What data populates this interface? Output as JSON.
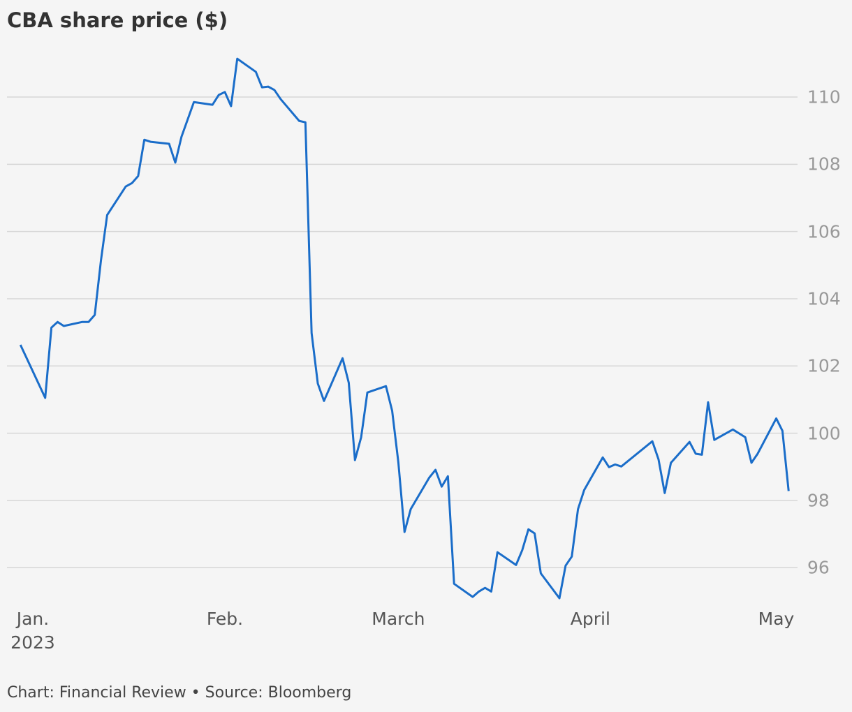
{
  "chart_data": {
    "type": "line",
    "title": "CBA share price ($)",
    "source": "Chart: Financial Review • Source: Bloomberg",
    "x": [
      -2,
      2,
      3,
      4,
      5,
      8,
      9,
      10,
      11,
      12,
      15,
      16,
      17,
      18,
      19,
      22,
      23,
      24,
      26,
      29,
      30,
      31,
      32,
      33,
      36,
      37,
      38,
      39,
      40,
      43,
      44,
      45,
      46,
      47,
      50,
      51,
      52,
      53,
      54,
      57,
      58,
      59,
      60,
      61,
      64,
      65,
      66,
      67,
      68,
      71,
      72,
      73,
      74,
      75,
      78,
      79,
      80,
      81,
      82,
      85,
      86,
      87,
      88,
      89,
      92,
      93,
      94,
      95,
      100,
      101,
      102,
      103,
      106,
      107,
      108,
      109,
      110,
      113,
      115,
      116,
      117,
      120,
      121,
      122
    ],
    "series": [
      {
        "name": "CBA",
        "color": "#1a6dc9",
        "values": [
          102.63,
          101.05,
          103.14,
          103.31,
          103.19,
          103.31,
          103.31,
          103.52,
          105.14,
          106.49,
          107.34,
          107.44,
          107.65,
          108.73,
          108.67,
          108.61,
          108.05,
          108.82,
          109.85,
          109.77,
          110.06,
          110.15,
          109.73,
          111.14,
          110.75,
          110.29,
          110.31,
          110.21,
          109.94,
          109.29,
          109.25,
          102.98,
          101.48,
          100.96,
          102.23,
          101.5,
          99.2,
          99.88,
          101.21,
          101.4,
          100.67,
          99.14,
          97.06,
          97.74,
          98.68,
          98.91,
          98.41,
          98.72,
          95.52,
          95.13,
          95.29,
          95.4,
          95.29,
          96.46,
          96.08,
          96.52,
          97.14,
          97.02,
          95.83,
          95.09,
          96.06,
          96.33,
          97.74,
          98.31,
          99.28,
          98.99,
          99.07,
          99.01,
          99.76,
          99.22,
          98.22,
          99.12,
          99.74,
          99.39,
          99.36,
          100.92,
          99.8,
          100.11,
          99.88,
          99.12,
          99.39,
          100.44,
          100.07,
          98.28
        ]
      }
    ],
    "xlim": [
      -4,
      124
    ],
    "xticks": [
      {
        "value": 0,
        "label": "Jan.\n2023"
      },
      {
        "value": 31,
        "label": "Feb."
      },
      {
        "value": 59,
        "label": "March"
      },
      {
        "value": 90,
        "label": "April"
      },
      {
        "value": 120,
        "label": "May"
      }
    ],
    "ylim": [
      94.8,
      111.6
    ],
    "yticks": [
      96,
      98,
      100,
      102,
      104,
      106,
      108,
      110
    ],
    "grid": true
  }
}
